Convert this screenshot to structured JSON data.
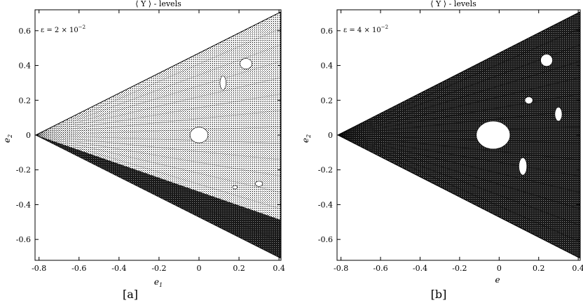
{
  "chart_data": [
    {
      "type": "scatter",
      "title": "⟨ Y ⟩ - levels",
      "panel_label": "[a]",
      "annotation": {
        "base": "ε = 2 × 10",
        "exponent": "−2"
      },
      "xlabel": "e",
      "xlabel_sub": "1",
      "ylabel": "e",
      "ylabel_sub": "2",
      "xlim": [
        -0.82,
        0.41
      ],
      "ylim": [
        -0.72,
        0.72
      ],
      "xticks": [
        -0.8,
        -0.6,
        -0.4,
        -0.2,
        0,
        0.2,
        0.4
      ],
      "xtick_labels": [
        "-0.8",
        "-0.6",
        "-0.4",
        "-0.2",
        "0",
        "0.2",
        "0.4"
      ],
      "yticks": [
        -0.6,
        -0.4,
        -0.2,
        0,
        0.2,
        0.4,
        0.6
      ],
      "ytick_labels": [
        "-0.6",
        "-0.4",
        "-0.2",
        "0",
        "0.2",
        "0.4",
        "0.6"
      ],
      "region_vertices": [
        [
          -0.816,
          0
        ],
        [
          0.408,
          0.707
        ],
        [
          0.408,
          -0.707
        ]
      ],
      "holes": [
        {
          "x": 0.0,
          "y": 0.0,
          "rx": 0.045,
          "ry": 0.045
        },
        {
          "x": 0.235,
          "y": 0.41,
          "rx": 0.03,
          "ry": 0.03
        },
        {
          "x": 0.3,
          "y": -0.28,
          "rx": 0.018,
          "ry": 0.015
        },
        {
          "x": 0.18,
          "y": -0.3,
          "rx": 0.012,
          "ry": 0.01
        },
        {
          "x": 0.12,
          "y": 0.3,
          "rx": 0.015,
          "ry": 0.04
        }
      ],
      "grid": false,
      "legend": "none"
    },
    {
      "type": "scatter",
      "title": "⟨ Y ⟩ - levels",
      "panel_label": "[b]",
      "annotation": {
        "base": "ε = 4 × 10",
        "exponent": "−2"
      },
      "xlabel": "e",
      "xlabel_sub": "",
      "ylabel": "e",
      "ylabel_sub": "2",
      "xlim": [
        -0.82,
        0.41
      ],
      "ylim": [
        -0.72,
        0.72
      ],
      "xticks": [
        -0.8,
        -0.6,
        -0.4,
        -0.2,
        0,
        0.2,
        0.4
      ],
      "xtick_labels": [
        "-0.8",
        "-0.6",
        "-0.4",
        "-0.2",
        "0",
        "0.2",
        "0.4"
      ],
      "yticks": [
        -0.6,
        -0.4,
        -0.2,
        0,
        0.2,
        0.4,
        0.6
      ],
      "ytick_labels": [
        "-0.6",
        "-0.4",
        "-0.2",
        "0",
        "0.2",
        "0.4",
        "0.6"
      ],
      "region_vertices": [
        [
          -0.816,
          0
        ],
        [
          0.408,
          0.707
        ],
        [
          0.408,
          -0.707
        ]
      ],
      "holes": [
        {
          "x": -0.03,
          "y": 0.0,
          "rx": 0.085,
          "ry": 0.08
        },
        {
          "x": 0.24,
          "y": 0.43,
          "rx": 0.03,
          "ry": 0.035
        },
        {
          "x": 0.15,
          "y": 0.2,
          "rx": 0.02,
          "ry": 0.02
        },
        {
          "x": 0.12,
          "y": -0.18,
          "rx": 0.02,
          "ry": 0.05
        },
        {
          "x": 0.3,
          "y": 0.12,
          "rx": 0.018,
          "ry": 0.04
        }
      ],
      "grid": false,
      "legend": "none"
    }
  ]
}
